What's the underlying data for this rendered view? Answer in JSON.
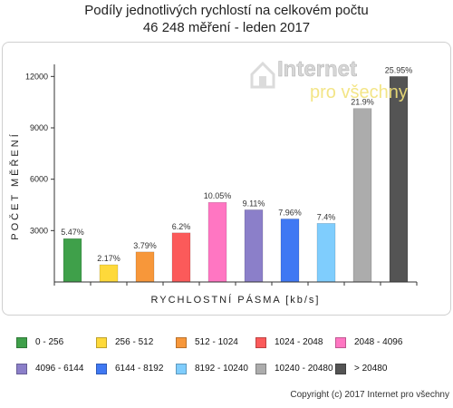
{
  "title_lines": [
    "Podíly jednotlivých rychlostí na celkovém počtu",
    "46 248 měření - leden 2017"
  ],
  "watermark": {
    "line1": "Internet",
    "line2": "pro všechny"
  },
  "copyright": "Copyright (c) 2017 Internet pro všechny",
  "chart_data": {
    "type": "bar",
    "title": "Podíly jednotlivých rychlostí na celkovém počtu 46 248 měření - leden 2017",
    "xlabel": "RYCHLOSTNÍ PÁSMA [kb/s]",
    "ylabel": "POČET MĚŘENÍ",
    "ylim": [
      0,
      12600
    ],
    "yticks": [
      3000,
      6000,
      9000,
      12000
    ],
    "grid": false,
    "legend_position": "bottom",
    "categories": [
      "0 - 256",
      "256 - 512",
      "512 - 1024",
      "1024 - 2048",
      "2048 - 4096",
      "4096 - 6144",
      "6144 - 8192",
      "8192 - 10240",
      "10240 - 20480",
      "> 20480"
    ],
    "values": [
      2530,
      1005,
      1753,
      2867,
      4648,
      4213,
      3681,
      3422,
      10128,
      12000
    ],
    "labels": [
      "5.47%",
      "2.17%",
      "3.79%",
      "6.2%",
      "10.05%",
      "9.11%",
      "7.96%",
      "7.4%",
      "21.9%",
      "25.95%"
    ],
    "colors": [
      "#3fa04a",
      "#fed93a",
      "#f7973a",
      "#fb5a5a",
      "#ff76c2",
      "#8b7fc9",
      "#3f78f3",
      "#7fcdfd",
      "#acacac",
      "#545454"
    ]
  }
}
